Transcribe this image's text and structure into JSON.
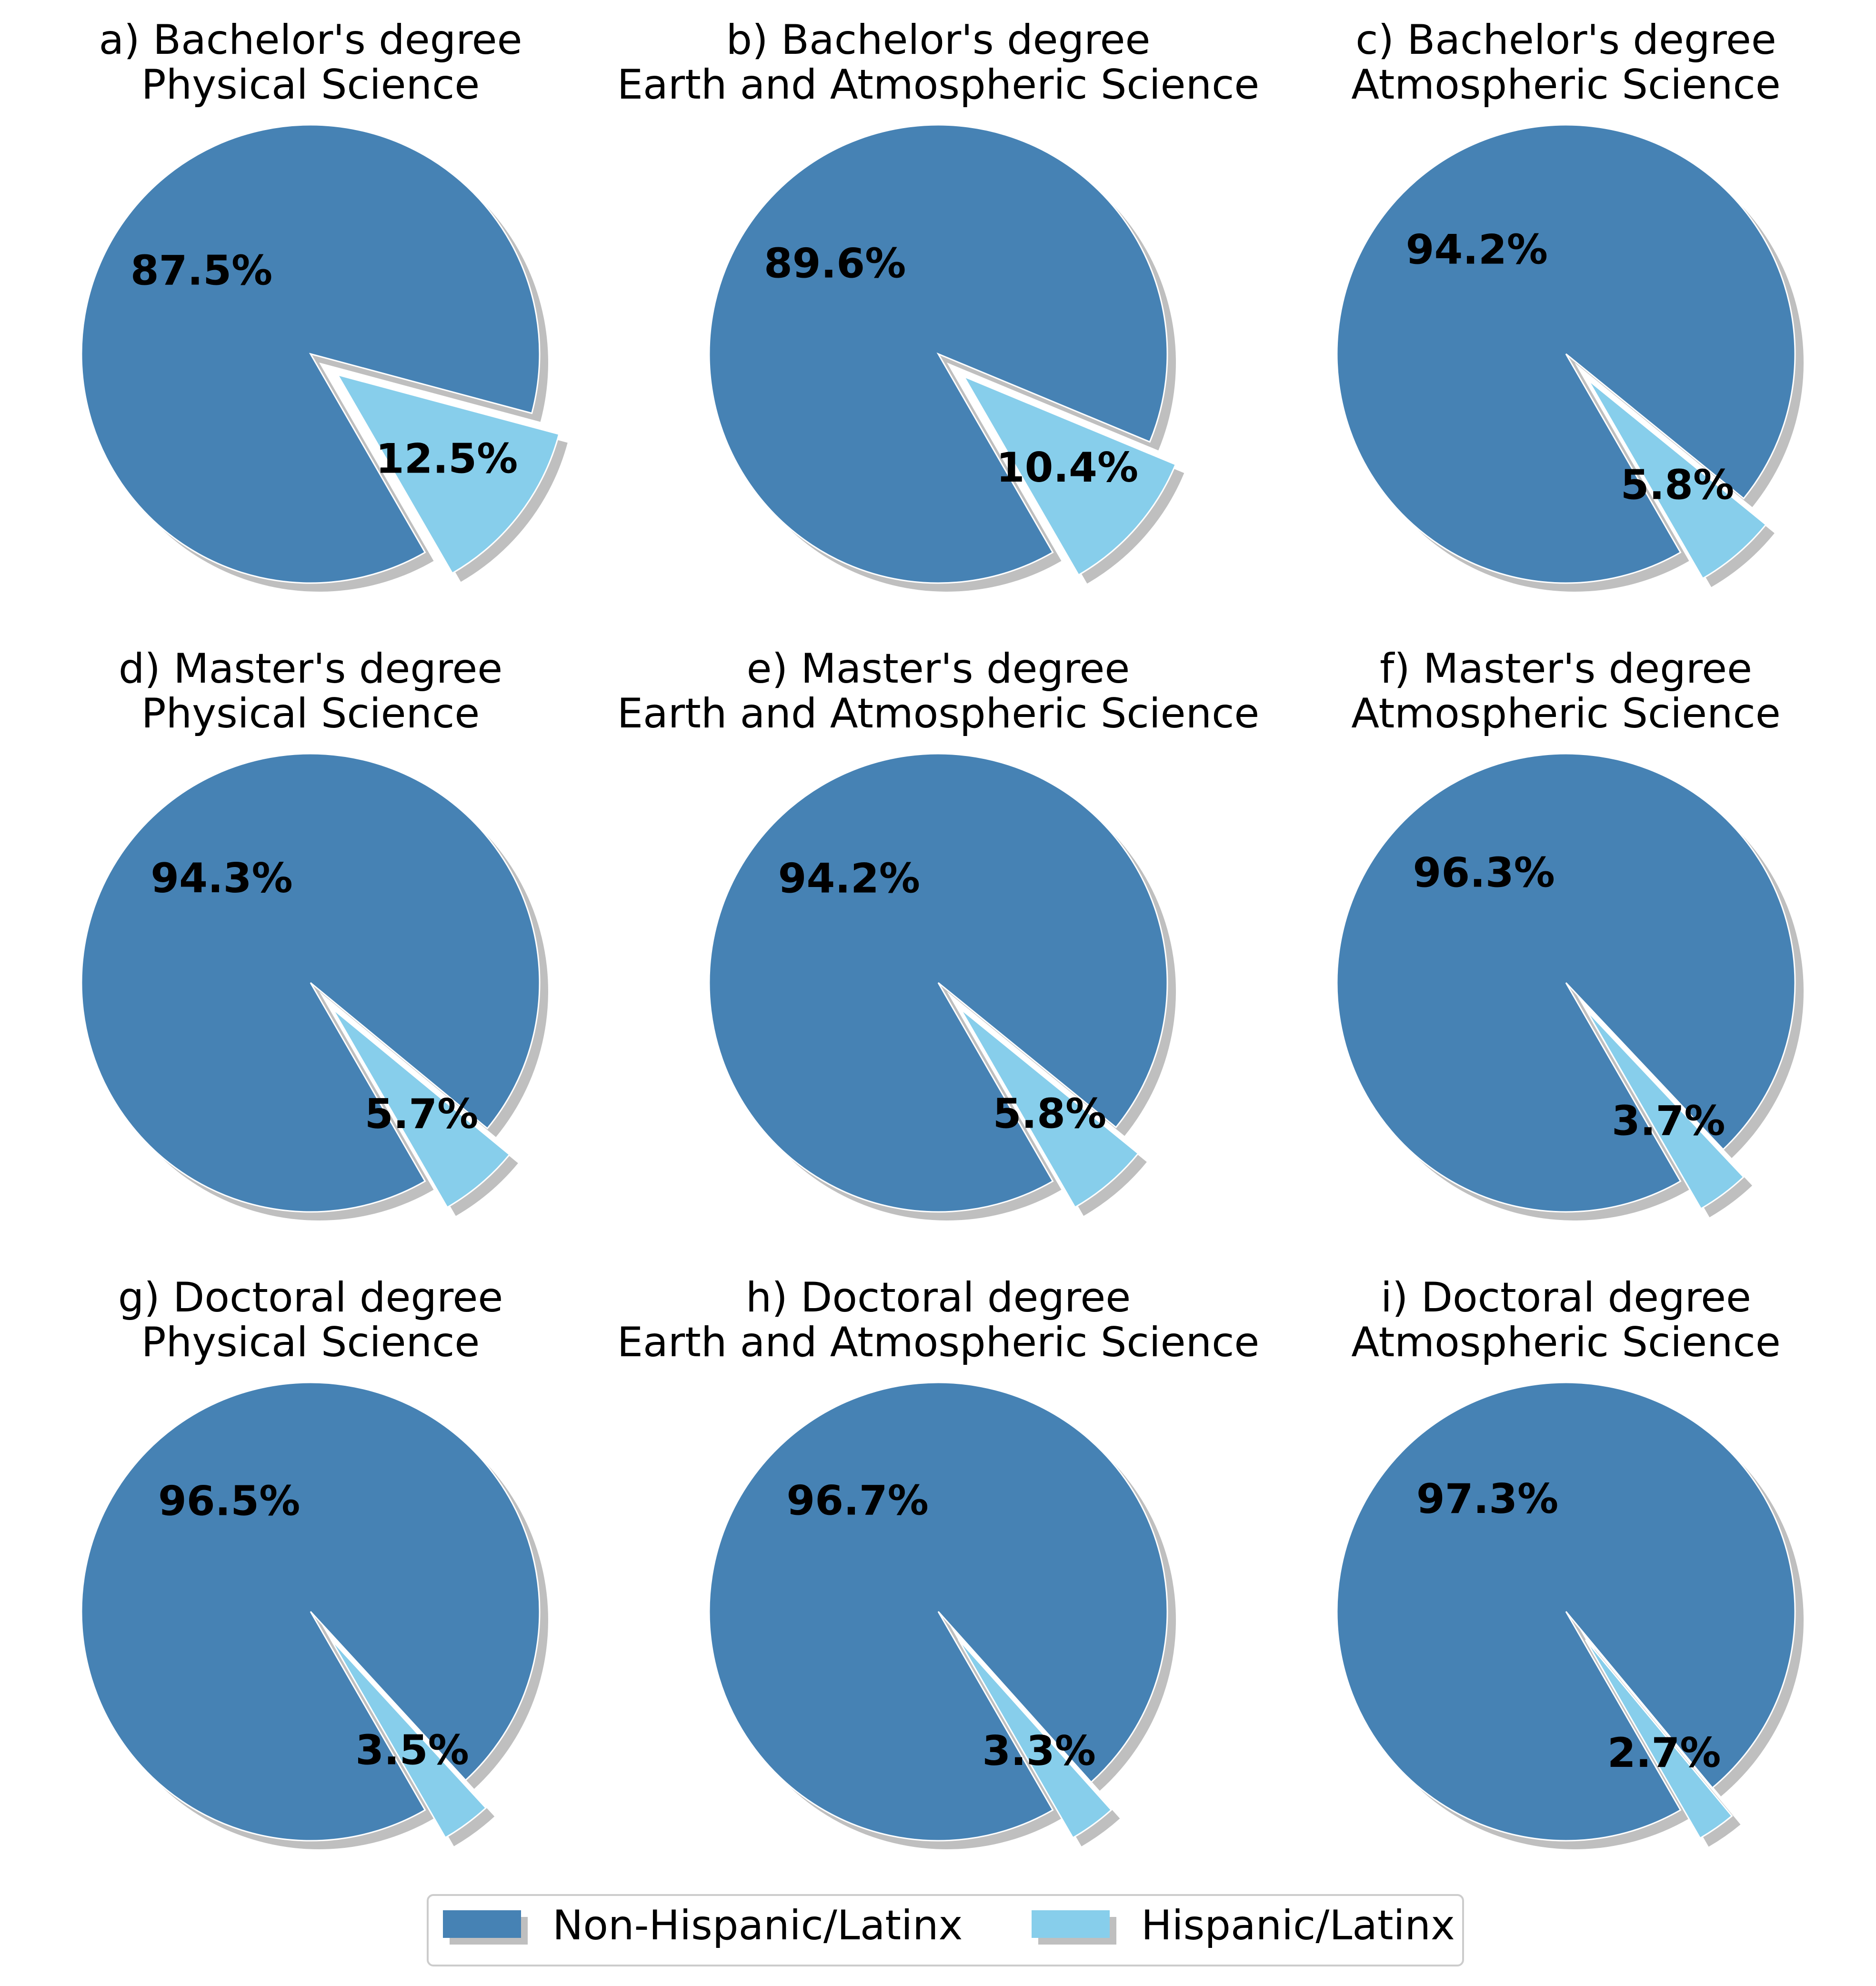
{
  "colors": {
    "non_hispanic": "#4682b4",
    "hispanic": "#87ceeb",
    "shadow": "#bfbfbf",
    "legend_border": "#cccccc"
  },
  "legend": {
    "placement": "bottom-center",
    "items": [
      "Non-Hispanic/Latinx",
      "Hispanic/Latinx"
    ]
  },
  "chart_data": [
    {
      "type": "pie",
      "title": [
        "a) Bachelor's degree",
        "Physical Science"
      ],
      "labels": [
        "Non-Hispanic/Latinx",
        "Hispanic/Latinx"
      ],
      "values": [
        87.5,
        12.5
      ],
      "value_labels": [
        "87.5%",
        "12.5%"
      ],
      "exploded": "Hispanic/Latinx"
    },
    {
      "type": "pie",
      "title": [
        "b) Bachelor's degree",
        "Earth and Atmospheric Science"
      ],
      "labels": [
        "Non-Hispanic/Latinx",
        "Hispanic/Latinx"
      ],
      "values": [
        89.6,
        10.4
      ],
      "value_labels": [
        "89.6%",
        "10.4%"
      ],
      "exploded": "Hispanic/Latinx"
    },
    {
      "type": "pie",
      "title": [
        "c) Bachelor's degree",
        "Atmospheric Science"
      ],
      "labels": [
        "Non-Hispanic/Latinx",
        "Hispanic/Latinx"
      ],
      "values": [
        94.2,
        5.8
      ],
      "value_labels": [
        "94.2%",
        "5.8%"
      ],
      "exploded": "Hispanic/Latinx"
    },
    {
      "type": "pie",
      "title": [
        "d) Master's degree",
        "Physical Science"
      ],
      "labels": [
        "Non-Hispanic/Latinx",
        "Hispanic/Latinx"
      ],
      "values": [
        94.3,
        5.7
      ],
      "value_labels": [
        "94.3%",
        "5.7%"
      ],
      "exploded": "Hispanic/Latinx"
    },
    {
      "type": "pie",
      "title": [
        "e) Master's degree",
        "Earth and Atmospheric Science"
      ],
      "labels": [
        "Non-Hispanic/Latinx",
        "Hispanic/Latinx"
      ],
      "values": [
        94.2,
        5.8
      ],
      "value_labels": [
        "94.2%",
        "5.8%"
      ],
      "exploded": "Hispanic/Latinx"
    },
    {
      "type": "pie",
      "title": [
        "f) Master's degree",
        "Atmospheric Science"
      ],
      "labels": [
        "Non-Hispanic/Latinx",
        "Hispanic/Latinx"
      ],
      "values": [
        96.3,
        3.7
      ],
      "value_labels": [
        "96.3%",
        "3.7%"
      ],
      "exploded": "Hispanic/Latinx"
    },
    {
      "type": "pie",
      "title": [
        "g) Doctoral degree",
        "Physical Science"
      ],
      "labels": [
        "Non-Hispanic/Latinx",
        "Hispanic/Latinx"
      ],
      "values": [
        96.5,
        3.5
      ],
      "value_labels": [
        "96.5%",
        "3.5%"
      ],
      "exploded": "Hispanic/Latinx"
    },
    {
      "type": "pie",
      "title": [
        "h) Doctoral degree",
        "Earth and Atmospheric Science"
      ],
      "labels": [
        "Non-Hispanic/Latinx",
        "Hispanic/Latinx"
      ],
      "values": [
        96.7,
        3.3
      ],
      "value_labels": [
        "96.7%",
        "3.3%"
      ],
      "exploded": "Hispanic/Latinx"
    },
    {
      "type": "pie",
      "title": [
        "i) Doctoral degree",
        "Atmospheric Science"
      ],
      "labels": [
        "Non-Hispanic/Latinx",
        "Hispanic/Latinx"
      ],
      "values": [
        97.3,
        2.7
      ],
      "value_labels": [
        "97.3%",
        "2.7%"
      ],
      "exploded": "Hispanic/Latinx"
    }
  ]
}
